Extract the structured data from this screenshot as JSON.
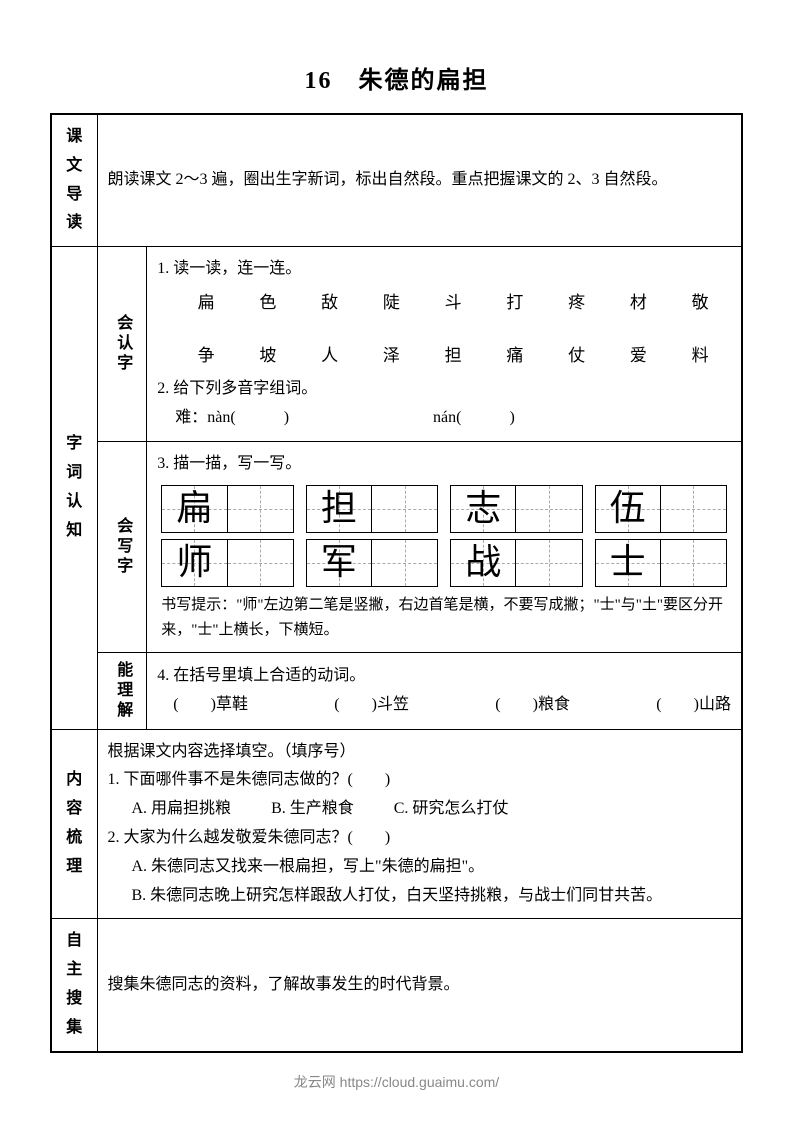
{
  "lesson_number": "16",
  "lesson_title": "朱德的扁担",
  "colors": {
    "text": "#000000",
    "background": "#ffffff",
    "border": "#000000",
    "dash": "#aaaaaa",
    "footer": "#888888"
  },
  "sections": {
    "daodu": {
      "label": "课文导读",
      "text": "朗读课文 2～3 遍，圈出生字新词，标出自然段。重点把握课文的 2、3 自然段。"
    },
    "zici": {
      "label": "字词认知",
      "huiren": {
        "label": "会认字",
        "q1_title": "1. 读一读，连一连。",
        "row1": [
          "扁",
          "色",
          "敌",
          "陡",
          "斗",
          "打",
          "疼",
          "材",
          "敬"
        ],
        "row2": [
          "争",
          "坡",
          "人",
          "泽",
          "担",
          "痛",
          "仗",
          "爱",
          "料"
        ],
        "q2_title": "2. 给下列多音字组词。",
        "q2_line": "难：nàn(　　　)　　　　　　　　　nán(　　　)"
      },
      "huixie": {
        "label": "会写字",
        "q3_title": "3. 描一描，写一写。",
        "chars_r1": [
          "扁",
          "担",
          "志",
          "伍"
        ],
        "chars_r2": [
          "师",
          "军",
          "战",
          "士"
        ],
        "hint": "书写提示：\"师\"左边第二笔是竖撇，右边首笔是横，不要写成撇；\"士\"与\"土\"要区分开来，\"士\"上横长，下横短。"
      },
      "nenglijie": {
        "label": "能理解",
        "q4_title": "4. 在括号里填上合适的动词。",
        "items": [
          "(　　)草鞋",
          "(　　)斗笠",
          "(　　)粮食",
          "(　　)山路"
        ]
      }
    },
    "neishu": {
      "label": "内容梳理",
      "intro": "根据课文内容选择填空。（填序号）",
      "q1": "1. 下面哪件事不是朱德同志做的？(　　)",
      "q1_opts": [
        "A. 用扁担挑粮",
        "B. 生产粮食",
        "C. 研究怎么打仗"
      ],
      "q2": "2. 大家为什么越发敬爱朱德同志？(　　)",
      "q2_optA": "A. 朱德同志又找来一根扁担，写上\"朱德的扁担\"。",
      "q2_optB": "B. 朱德同志晚上研究怎样跟敌人打仗，白天坚持挑粮，与战士们同甘共苦。"
    },
    "zizhu": {
      "label": "自主搜集",
      "text": "搜集朱德同志的资料，了解故事发生的时代背景。"
    }
  },
  "footer": "龙云网 https://cloud.guaimu.com/"
}
